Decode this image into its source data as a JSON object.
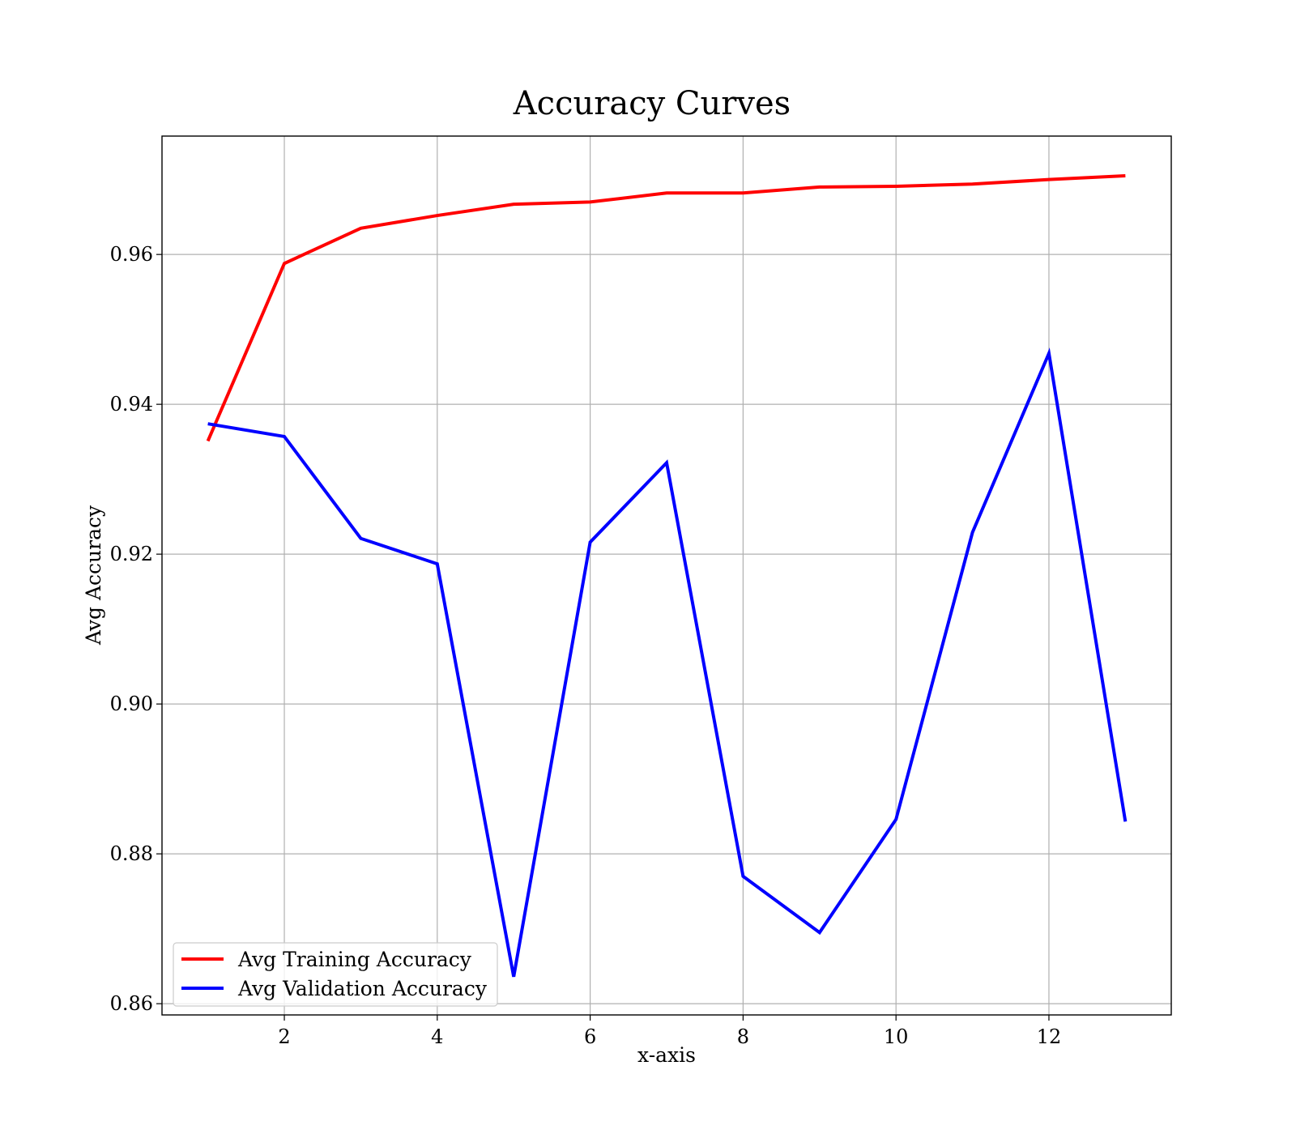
{
  "chart_data": {
    "type": "line",
    "title": "Accuracy Curves",
    "xlabel": "x-axis",
    "ylabel": "Avg Accuracy",
    "x": [
      1,
      2,
      3,
      4,
      5,
      6,
      7,
      8,
      9,
      10,
      11,
      12,
      13
    ],
    "xlim": [
      0.4,
      13.6
    ],
    "ylim": [
      0.8585,
      0.9758
    ],
    "x_ticks": [
      2,
      4,
      6,
      8,
      10,
      12
    ],
    "x_tick_labels": [
      "2",
      "4",
      "6",
      "8",
      "10",
      "12"
    ],
    "y_ticks": [
      0.86,
      0.88,
      0.9,
      0.92,
      0.94,
      0.96
    ],
    "y_tick_labels": [
      "0.86",
      "0.88",
      "0.90",
      "0.92",
      "0.94",
      "0.96"
    ],
    "grid": true,
    "legend_position": "lower-left",
    "series": [
      {
        "name": "Avg Training Accuracy",
        "color": "#ff0000",
        "values": [
          0.9351,
          0.9588,
          0.9635,
          0.9652,
          0.9667,
          0.967,
          0.9682,
          0.9682,
          0.969,
          0.9691,
          0.9694,
          0.97,
          0.9705
        ]
      },
      {
        "name": "Avg Validation Accuracy",
        "color": "#0000ff",
        "values": [
          0.9374,
          0.9357,
          0.9221,
          0.9187,
          0.8636,
          0.9216,
          0.9322,
          0.877,
          0.8695,
          0.8846,
          0.9229,
          0.9468,
          0.8843
        ]
      }
    ]
  }
}
